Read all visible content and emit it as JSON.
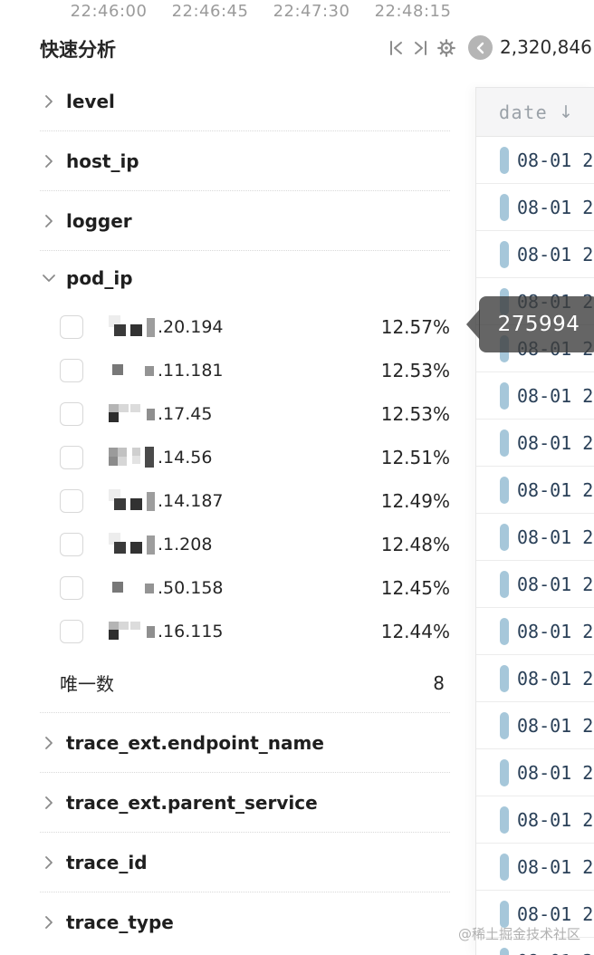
{
  "time_axis": {
    "labels": [
      "22:46:00",
      "22:46:45",
      "22:47:30",
      "22:48:15"
    ]
  },
  "header": {
    "title": "快速分析",
    "count": "2,320,846",
    "icons": [
      "skip-to-start-icon",
      "skip-to-end-icon",
      "gear-icon",
      "collapse-circle-icon"
    ]
  },
  "fields": {
    "collapsed_above": [
      {
        "label": "level"
      },
      {
        "label": "host_ip"
      },
      {
        "label": "logger"
      }
    ],
    "expanded": {
      "label": "pod_ip",
      "values": [
        {
          "suffix": ".20.194",
          "percent": "12.57%",
          "mask_style": 1
        },
        {
          "suffix": ".11.181",
          "percent": "12.53%",
          "mask_style": 2
        },
        {
          "suffix": ".17.45",
          "percent": "12.53%",
          "mask_style": 3
        },
        {
          "suffix": ".14.56",
          "percent": "12.51%",
          "mask_style": 4
        },
        {
          "suffix": ".14.187",
          "percent": "12.49%",
          "mask_style": 1
        },
        {
          "suffix": ".1.208",
          "percent": "12.48%",
          "mask_style": 1
        },
        {
          "suffix": ".50.158",
          "percent": "12.45%",
          "mask_style": 2
        },
        {
          "suffix": ".16.115",
          "percent": "12.44%",
          "mask_style": 3
        }
      ],
      "unique_label": "唯一数",
      "unique_value": "8"
    },
    "collapsed_below": [
      {
        "label": "trace_ext.endpoint_name"
      },
      {
        "label": "trace_ext.parent_service"
      },
      {
        "label": "trace_id"
      },
      {
        "label": "trace_type"
      }
    ]
  },
  "table": {
    "header": {
      "column": "date",
      "sort_icon": "↓"
    },
    "rows": [
      {
        "date": "08-01 2"
      },
      {
        "date": "08-01 2"
      },
      {
        "date": "08-01 2"
      },
      {
        "date": "08-01 2"
      },
      {
        "date": "08-01 2"
      },
      {
        "date": "08-01 2"
      },
      {
        "date": "08-01 2"
      },
      {
        "date": "08-01 2"
      },
      {
        "date": "08-01 2"
      },
      {
        "date": "08-01 2"
      },
      {
        "date": "08-01 2"
      },
      {
        "date": "08-01 2"
      },
      {
        "date": "08-01 2"
      },
      {
        "date": "08-01 2"
      },
      {
        "date": "08-01 2"
      },
      {
        "date": "08-01 2"
      },
      {
        "date": "08-01 2"
      },
      {
        "date": "08-01 2"
      }
    ]
  },
  "tooltip": {
    "value": "275994"
  },
  "watermark": "@稀土掘金技术社区",
  "colors": {
    "accent_pill": "#a6c7da",
    "date_text": "#2a4058",
    "tooltip_bg": "rgba(62,62,62,0.80)",
    "table_header_bg": "#f5f5f6",
    "muted_text": "#9b9b9b"
  }
}
